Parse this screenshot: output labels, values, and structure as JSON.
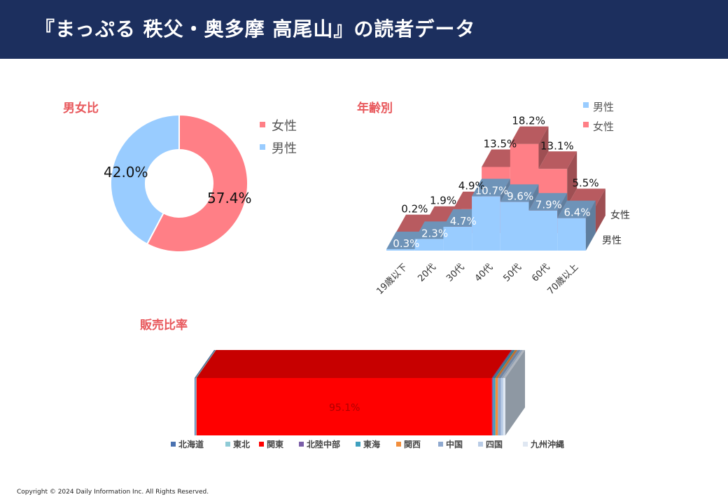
{
  "header": {
    "title": "『まっぷる 秩父・奥多摩 高尾山』の読者データ"
  },
  "sections": {
    "gender": "男女比",
    "age": "年齢別",
    "sales": "販売比率"
  },
  "colors": {
    "header_bg": "#1c2f5e",
    "section_title": "#e8585c",
    "female": "#ff7f86",
    "male": "#99ccff"
  },
  "chart_data": [
    {
      "type": "pie",
      "title": "男女比",
      "categories": [
        "女性",
        "男性"
      ],
      "values": [
        57.4,
        42.0
      ],
      "labels": [
        "57.4%",
        "42.0%"
      ],
      "colors": [
        "#ff7f86",
        "#99ccff"
      ],
      "legend": "right",
      "donut": true
    },
    {
      "type": "bar",
      "title": "年齢別",
      "categories": [
        "19歳以下",
        "20代",
        "30代",
        "40代",
        "50代",
        "60代",
        "70歳以上"
      ],
      "series": [
        {
          "name": "男性",
          "values": [
            0.3,
            2.3,
            4.7,
            10.7,
            9.6,
            7.9,
            6.4
          ],
          "labels": [
            "0.3%",
            "2.3%",
            "4.7%",
            "10.7%",
            "9.6%",
            "7.9%",
            "6.4%"
          ],
          "color": "#99ccff"
        },
        {
          "name": "女性",
          "values": [
            0.2,
            1.9,
            4.9,
            13.5,
            18.2,
            13.1,
            5.5
          ],
          "labels": [
            "0.2%",
            "1.9%",
            "4.9%",
            "13.5%",
            "18.2%",
            "13.1%",
            "5.5%"
          ],
          "color": "#ff7f86"
        }
      ],
      "legend": "top-right",
      "three_d": true
    },
    {
      "type": "bar",
      "title": "販売比率",
      "orientation": "horizontal-stacked",
      "categories": [
        "北海道",
        "東北",
        "関東",
        "北陸中部",
        "東海",
        "関西",
        "中国",
        "四国",
        "九州沖縄"
      ],
      "values": [
        0.3,
        0.3,
        95.1,
        0.4,
        0.7,
        0.8,
        1.0,
        0.7,
        0.7
      ],
      "data_label": "95.1%",
      "colors": [
        "#4a72b0",
        "#8fcbd6",
        "#ff0000",
        "#7a5ea8",
        "#3fa0bf",
        "#f28e3c",
        "#8fa9cf",
        "#b9cce6",
        "#dfe7f2"
      ],
      "legend": "bottom",
      "three_d": true
    }
  ],
  "footer": {
    "copyright": "Copyright © 2024 Daily Information Inc. All Rights Reserved."
  }
}
